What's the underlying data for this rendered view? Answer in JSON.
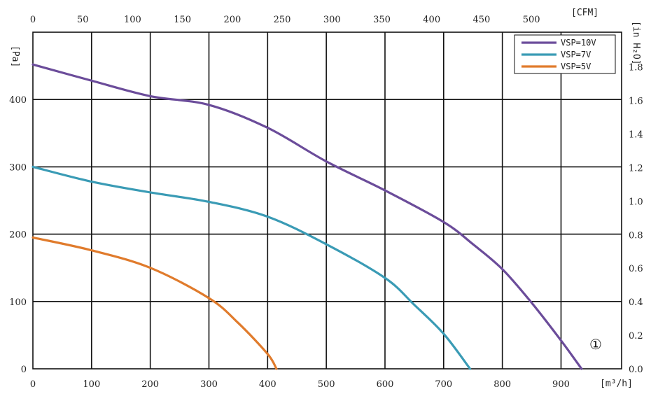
{
  "chart_data": {
    "type": "line",
    "x_unit": "[m³/h]",
    "y_unit": "[Pa]",
    "x2_unit": "[CFM]",
    "y2_unit": "[in H₂O]",
    "xlim": [
      0,
      1000
    ],
    "ylim": [
      0,
      500
    ],
    "x_ticks": [
      "0",
      "100",
      "200",
      "300",
      "400",
      "500",
      "600",
      "700",
      "800",
      "900"
    ],
    "y_ticks": [
      "0",
      "100",
      "200",
      "300",
      "400"
    ],
    "x2_ticks": [
      "0",
      "50",
      "100",
      "150",
      "200",
      "250",
      "300",
      "350",
      "400",
      "450",
      "500"
    ],
    "y2_ticks": [
      "0.0",
      "0.2",
      "0.4",
      "0.6",
      "0.8",
      "1.0",
      "1.2",
      "1.4",
      "1.6",
      "1.8"
    ],
    "grid": true,
    "legend_position": "top-right",
    "annotation": "①",
    "colors": {
      "VSP=10V": "#6b4c9a",
      "VSP=7V": "#3a9bb5",
      "VSP=5V": "#e07b2c"
    },
    "series": [
      {
        "name": "VSP=10V",
        "x": [
          0,
          100,
          200,
          300,
          400,
          500,
          600,
          700,
          750,
          800,
          850,
          900,
          935
        ],
        "y": [
          452,
          428,
          405,
          392,
          358,
          308,
          265,
          218,
          185,
          148,
          98,
          42,
          0
        ]
      },
      {
        "name": "VSP=7V",
        "x": [
          0,
          100,
          200,
          300,
          400,
          500,
          600,
          650,
          700,
          745
        ],
        "y": [
          300,
          278,
          262,
          248,
          226,
          185,
          135,
          95,
          52,
          0
        ]
      },
      {
        "name": "VSP=5V",
        "x": [
          0,
          100,
          200,
          300,
          350,
          400,
          415
        ],
        "y": [
          195,
          176,
          150,
          105,
          68,
          22,
          0
        ]
      }
    ]
  }
}
